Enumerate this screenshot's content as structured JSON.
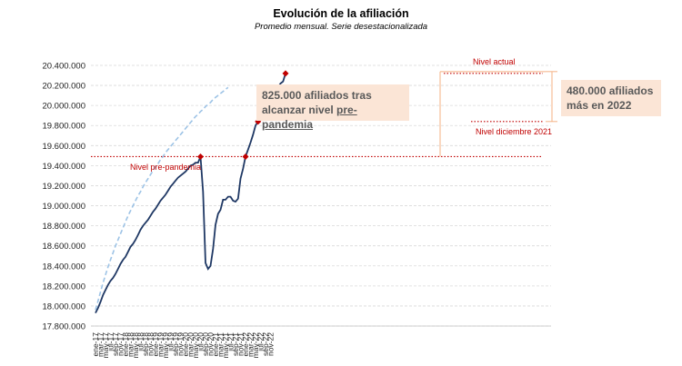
{
  "title": "Evolución de la afiliación",
  "subtitle": "Promedio mensual. Serie desestacionalizada",
  "annotations": {
    "nivel_actual": "Nivel actual",
    "nivel_pre": "Nivel pre-pandemia",
    "nivel_dic": "Nivel diciembre 2021",
    "box1_line1": "825.000 afiliados tras",
    "box1_line2_a": "alcanzar nivel ",
    "box1_line2_b": "pre-pandemia",
    "box2_line1": "480.000 afiliados",
    "box2_line2": "más en 2022"
  },
  "colors": {
    "series": "#1f3864",
    "trend": "#9dc3e6",
    "ref": "#c00000",
    "box": "#fbe5d6",
    "bracket": "#f4b183"
  },
  "chart_data": {
    "type": "line",
    "ylim": [
      17800000,
      20400000
    ],
    "yticks": [
      "17.800.000",
      "18.000.000",
      "18.200.000",
      "18.400.000",
      "18.600.000",
      "18.800.000",
      "19.000.000",
      "19.200.000",
      "19.400.000",
      "19.600.000",
      "19.800.000",
      "20.000.000",
      "20.200.000",
      "20.400.000"
    ],
    "xticks": [
      "ene-17",
      "mar-17",
      "may-17",
      "jul-17",
      "sep-17",
      "nov-17",
      "ene-18",
      "mar-18",
      "may-18",
      "jul-18",
      "sep-18",
      "nov-18",
      "ene-19",
      "mar-19",
      "may-19",
      "jul-19",
      "sep-19",
      "nov-19",
      "ene-20",
      "mar-20",
      "may-20",
      "jul-20",
      "sep-20",
      "nov-20",
      "ene-21",
      "mar-21",
      "may-21",
      "jul-21",
      "sep-21",
      "nov-21",
      "ene-22",
      "mar-22",
      "may-22",
      "jul-22",
      "sep-22",
      "nov-22"
    ],
    "reference_lines": {
      "pre_pandemia": 19490000,
      "diciembre_2021": 19840000,
      "actual": 20320000
    },
    "series": [
      {
        "values": [
          17930000,
          17980000,
          18040000,
          18110000,
          18160000,
          18210000,
          18250000,
          18280000,
          18320000,
          18370000,
          18420000,
          18460000,
          18490000,
          18540000,
          18590000,
          18620000,
          18660000,
          18710000,
          18760000,
          18800000,
          18830000,
          18860000,
          18900000,
          18940000,
          18970000,
          19010000,
          19050000,
          19080000,
          19110000,
          19150000,
          19190000,
          19220000,
          19250000,
          19280000,
          19300000,
          19320000,
          19340000,
          19370000,
          19400000,
          19410000,
          19430000,
          19430000,
          19490000,
          19140000,
          18430000,
          18370000,
          18400000,
          18570000,
          18810000,
          18920000,
          18960000,
          19060000,
          19060000,
          19090000,
          19090000,
          19050000,
          19040000,
          19070000,
          19270000,
          19370000,
          19490000,
          19560000,
          19630000,
          19710000,
          19800000,
          19840000,
          19890000,
          19930000,
          19960000,
          20000000,
          20040000,
          20100000,
          20120000,
          20180000,
          20220000,
          20240000,
          20320000
        ]
      },
      {
        "values": [
          17960000,
          18050000,
          18140000,
          18230000,
          18310000,
          18390000,
          18460000,
          18530000,
          18600000,
          18660000,
          18720000,
          18780000,
          18840000,
          18900000,
          18950000,
          19000000,
          19050000,
          19100000,
          19140000,
          19190000,
          19230000,
          19270000,
          19310000,
          19350000,
          19390000,
          19420000,
          19460000,
          19490000,
          19530000,
          19560000,
          19590000,
          19620000,
          19650000,
          19680000,
          19710000,
          19740000,
          19770000,
          19800000,
          19830000,
          19860000,
          19890000,
          19910000,
          19940000,
          19960000,
          19990000,
          20010000,
          20030000,
          20060000,
          20080000,
          20100000,
          20120000,
          20140000,
          20160000,
          20180000
        ]
      }
    ]
  }
}
